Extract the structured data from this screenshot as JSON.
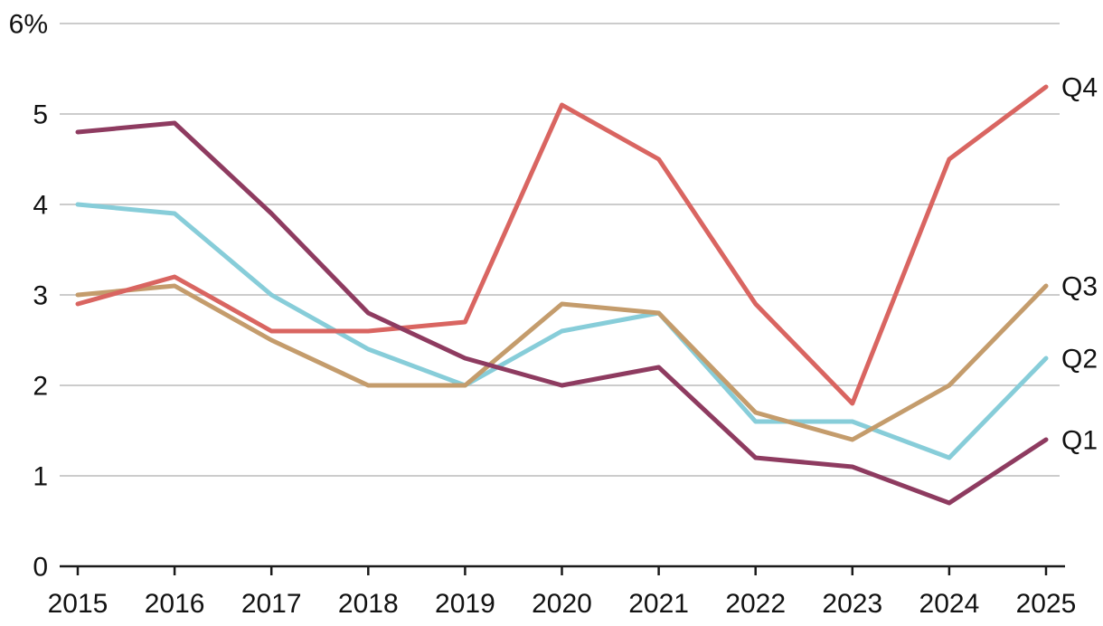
{
  "chart_data": {
    "type": "line",
    "title": "",
    "xlabel": "",
    "ylabel": "",
    "y_unit": "%",
    "x": [
      "2015",
      "2016",
      "2017",
      "2018",
      "2019",
      "2020",
      "2021",
      "2022",
      "2023",
      "2024",
      "2025"
    ],
    "y_axis": {
      "min": 0,
      "max": 6,
      "ticks": [
        0,
        1,
        2,
        3,
        4,
        5,
        6
      ],
      "tick_labels": [
        "0",
        "1",
        "2",
        "3",
        "4",
        "5",
        "6%"
      ]
    },
    "grid": "horizontal",
    "legend_position": "right-end-labels",
    "series": [
      {
        "name": "Q1",
        "color": "#8e3b60",
        "values": [
          4.8,
          4.9,
          3.9,
          2.8,
          2.3,
          2.0,
          2.2,
          1.2,
          1.1,
          0.7,
          1.4
        ]
      },
      {
        "name": "Q2",
        "color": "#87cdd9",
        "values": [
          4.0,
          3.9,
          3.0,
          2.4,
          2.0,
          2.6,
          2.8,
          1.6,
          1.6,
          1.2,
          2.3
        ]
      },
      {
        "name": "Q3",
        "color": "#c49c6c",
        "values": [
          3.0,
          3.1,
          2.5,
          2.0,
          2.0,
          2.9,
          2.8,
          1.7,
          1.4,
          2.0,
          3.1
        ]
      },
      {
        "name": "Q4",
        "color": "#d96561",
        "values": [
          2.9,
          3.2,
          2.6,
          2.6,
          2.7,
          5.1,
          4.5,
          2.9,
          1.8,
          4.5,
          5.3
        ]
      }
    ],
    "draw_order": [
      "Q2",
      "Q3",
      "Q4",
      "Q1"
    ],
    "colors": {
      "gridline": "#cccccc",
      "axis": "#1a1a1a",
      "label": "#121212"
    }
  }
}
